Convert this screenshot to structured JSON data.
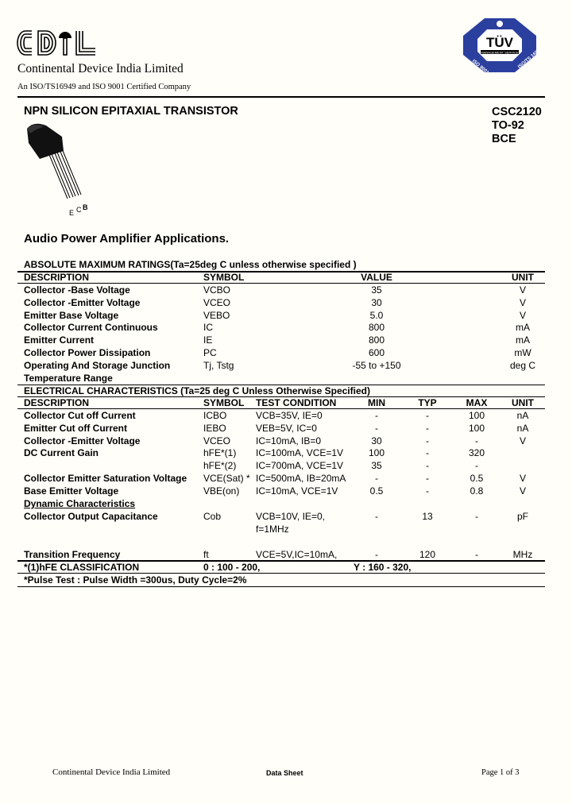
{
  "header": {
    "logo_text": "CDIL",
    "company": "Continental Device India Limited",
    "certification": "An ISO/TS16949 and ISO 9001 Certified Company",
    "tuv_badge": {
      "title": "TÜV",
      "subtitle": "MANAGEMENT SERVICE",
      "left": "ISO 9001",
      "right": "ISO/TS 16949",
      "color": "#2b3f9e"
    }
  },
  "product": {
    "title": "NPN SILICON EPITAXIAL TRANSISTOR",
    "part_number": "CSC2120",
    "package": "TO-92",
    "pinout": "BCE",
    "pin_labels": [
      "E",
      "C",
      "B"
    ],
    "application": "Audio Power Amplifier Applications."
  },
  "abs_max": {
    "heading": "ABSOLUTE MAXIMUM RATINGS(Ta=25deg C unless otherwise specified )",
    "columns": [
      "DESCRIPTION",
      "SYMBOL",
      "VALUE",
      "UNIT"
    ],
    "rows": [
      [
        "Collector -Base Voltage",
        "VCBO",
        "35",
        "V"
      ],
      [
        "Collector -Emitter Voltage",
        "VCEO",
        "30",
        "V"
      ],
      [
        "Emitter Base Voltage",
        "VEBO",
        "5.0",
        "V"
      ],
      [
        "Collector Current  Continuous",
        "IC",
        "800",
        "mA"
      ],
      [
        "Emitter Current",
        "IE",
        "800",
        "mA"
      ],
      [
        "Collector Power Dissipation",
        "PC",
        "600",
        "mW"
      ],
      [
        "Operating And Storage Junction",
        "Tj, Tstg",
        "-55 to +150",
        "deg C"
      ],
      [
        "Temperature Range",
        "",
        "",
        ""
      ]
    ]
  },
  "electrical": {
    "heading": "ELECTRICAL CHARACTERISTICS (Ta=25 deg C Unless Otherwise Specified)",
    "columns": [
      "DESCRIPTION",
      "SYMBOL",
      "TEST CONDITION",
      "MIN",
      "TYP",
      "MAX",
      "UNIT"
    ],
    "rows": [
      [
        "Collector Cut off Current",
        "ICBO",
        "VCB=35V, IE=0",
        "-",
        "-",
        "100",
        "nA"
      ],
      [
        "Emitter Cut off Current",
        "IEBO",
        "VEB=5V, IC=0",
        "-",
        "-",
        "100",
        "nA"
      ],
      [
        "Collector -Emitter Voltage",
        "VCEO",
        "IC=10mA,  IB=0",
        "30",
        "-",
        "-",
        "V"
      ],
      [
        "DC Current Gain",
        "hFE*(1)",
        "IC=100mA, VCE=1V",
        "100",
        "-",
        "320",
        ""
      ],
      [
        "",
        "hFE*(2)",
        "IC=700mA, VCE=1V",
        "35",
        "-",
        "-",
        ""
      ],
      [
        "Collector Emitter Saturation Voltage",
        "VCE(Sat) *",
        "IC=500mA, IB=20mA",
        "-",
        "-",
        "0.5",
        "V"
      ],
      [
        "Base Emitter Voltage",
        "VBE(on)",
        "IC=10mA, VCE=1V",
        "0.5",
        "-",
        "0.8",
        "V"
      ]
    ],
    "dynamic_heading": "Dynamic Characteristics",
    "dynamic_rows": [
      [
        "Collector Output Capacitance",
        "Cob",
        "VCB=10V, IE=0,",
        "-",
        "13",
        "-",
        "pF"
      ],
      [
        "",
        "",
        "f=1MHz",
        "",
        "",
        "",
        ""
      ],
      [
        "Transition Frequency",
        "ft",
        "VCE=5V,IC=10mA,",
        "-",
        "120",
        "-",
        "MHz"
      ]
    ]
  },
  "classification": {
    "label": "*(1)hFE CLASSIFICATION",
    "o": "0 :  100 - 200,",
    "y": "Y : 160 - 320,"
  },
  "pulse_note": "*Pulse Test : Pulse Width =300us, Duty Cycle=2%",
  "footer": {
    "company": "Continental Device India Limited",
    "doc_type": "Data Sheet",
    "page": "Page 1 of 3"
  }
}
